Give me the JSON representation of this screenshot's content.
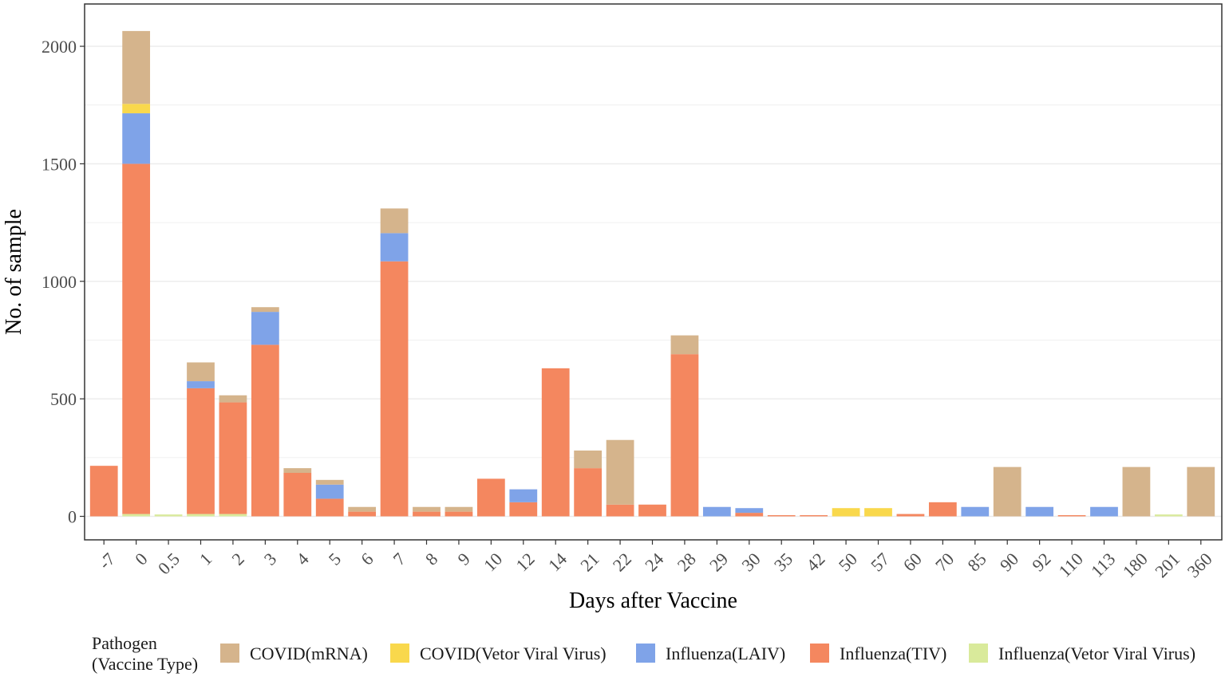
{
  "chart_data": {
    "type": "bar",
    "stacked": true,
    "xlabel": "Days after Vaccine",
    "ylabel": "No. of sample",
    "ylim": [
      -100,
      2180
    ],
    "yticks": [
      0,
      500,
      1000,
      1500,
      2000
    ],
    "grid": true,
    "legend_position": "bottom",
    "legend_title": [
      "Pathogen",
      "(Vaccine Type)"
    ],
    "categories": [
      "-7",
      "0",
      "0.5",
      "1",
      "2",
      "3",
      "4",
      "5",
      "6",
      "7",
      "8",
      "9",
      "10",
      "12",
      "14",
      "21",
      "22",
      "24",
      "28",
      "29",
      "30",
      "35",
      "42",
      "50",
      "57",
      "60",
      "70",
      "85",
      "90",
      "92",
      "110",
      "113",
      "180",
      "201",
      "360"
    ],
    "series": [
      {
        "name": "Influenza(Vetor Viral Virus)",
        "color": "#d9ea9b",
        "values": [
          0,
          10,
          8,
          10,
          10,
          0,
          0,
          0,
          0,
          0,
          0,
          0,
          0,
          0,
          0,
          0,
          0,
          0,
          0,
          0,
          0,
          0,
          0,
          0,
          0,
          0,
          0,
          0,
          0,
          0,
          0,
          0,
          0,
          8,
          0
        ]
      },
      {
        "name": "Influenza(TIV)",
        "color": "#f4875f",
        "values": [
          215,
          1490,
          0,
          535,
          475,
          730,
          185,
          75,
          20,
          1085,
          20,
          20,
          160,
          60,
          630,
          205,
          50,
          50,
          690,
          0,
          15,
          5,
          5,
          0,
          0,
          10,
          60,
          0,
          0,
          0,
          5,
          0,
          0,
          0,
          0
        ]
      },
      {
        "name": "Influenza(LAIV)",
        "color": "#7fa3e8",
        "values": [
          0,
          215,
          0,
          30,
          0,
          140,
          0,
          60,
          0,
          120,
          0,
          0,
          0,
          55,
          0,
          0,
          0,
          0,
          0,
          40,
          20,
          0,
          0,
          0,
          0,
          0,
          0,
          40,
          0,
          40,
          0,
          40,
          0,
          0,
          0
        ]
      },
      {
        "name": "COVID(Vetor Viral Virus)",
        "color": "#f9d84c",
        "values": [
          0,
          40,
          0,
          0,
          0,
          0,
          0,
          0,
          0,
          0,
          0,
          0,
          0,
          0,
          0,
          0,
          0,
          0,
          0,
          0,
          0,
          0,
          0,
          35,
          35,
          0,
          0,
          0,
          0,
          0,
          0,
          0,
          0,
          0,
          0
        ]
      },
      {
        "name": "COVID(mRNA)",
        "color": "#d5b48c",
        "values": [
          0,
          310,
          0,
          80,
          30,
          20,
          20,
          20,
          20,
          105,
          20,
          20,
          0,
          0,
          0,
          75,
          275,
          0,
          80,
          0,
          0,
          0,
          0,
          0,
          0,
          0,
          0,
          0,
          210,
          0,
          0,
          0,
          210,
          0,
          210
        ]
      }
    ],
    "legend_order": [
      "COVID(mRNA)",
      "COVID(Vetor Viral Virus)",
      "Influenza(LAIV)",
      "Influenza(TIV)",
      "Influenza(Vetor Viral Virus)"
    ]
  }
}
